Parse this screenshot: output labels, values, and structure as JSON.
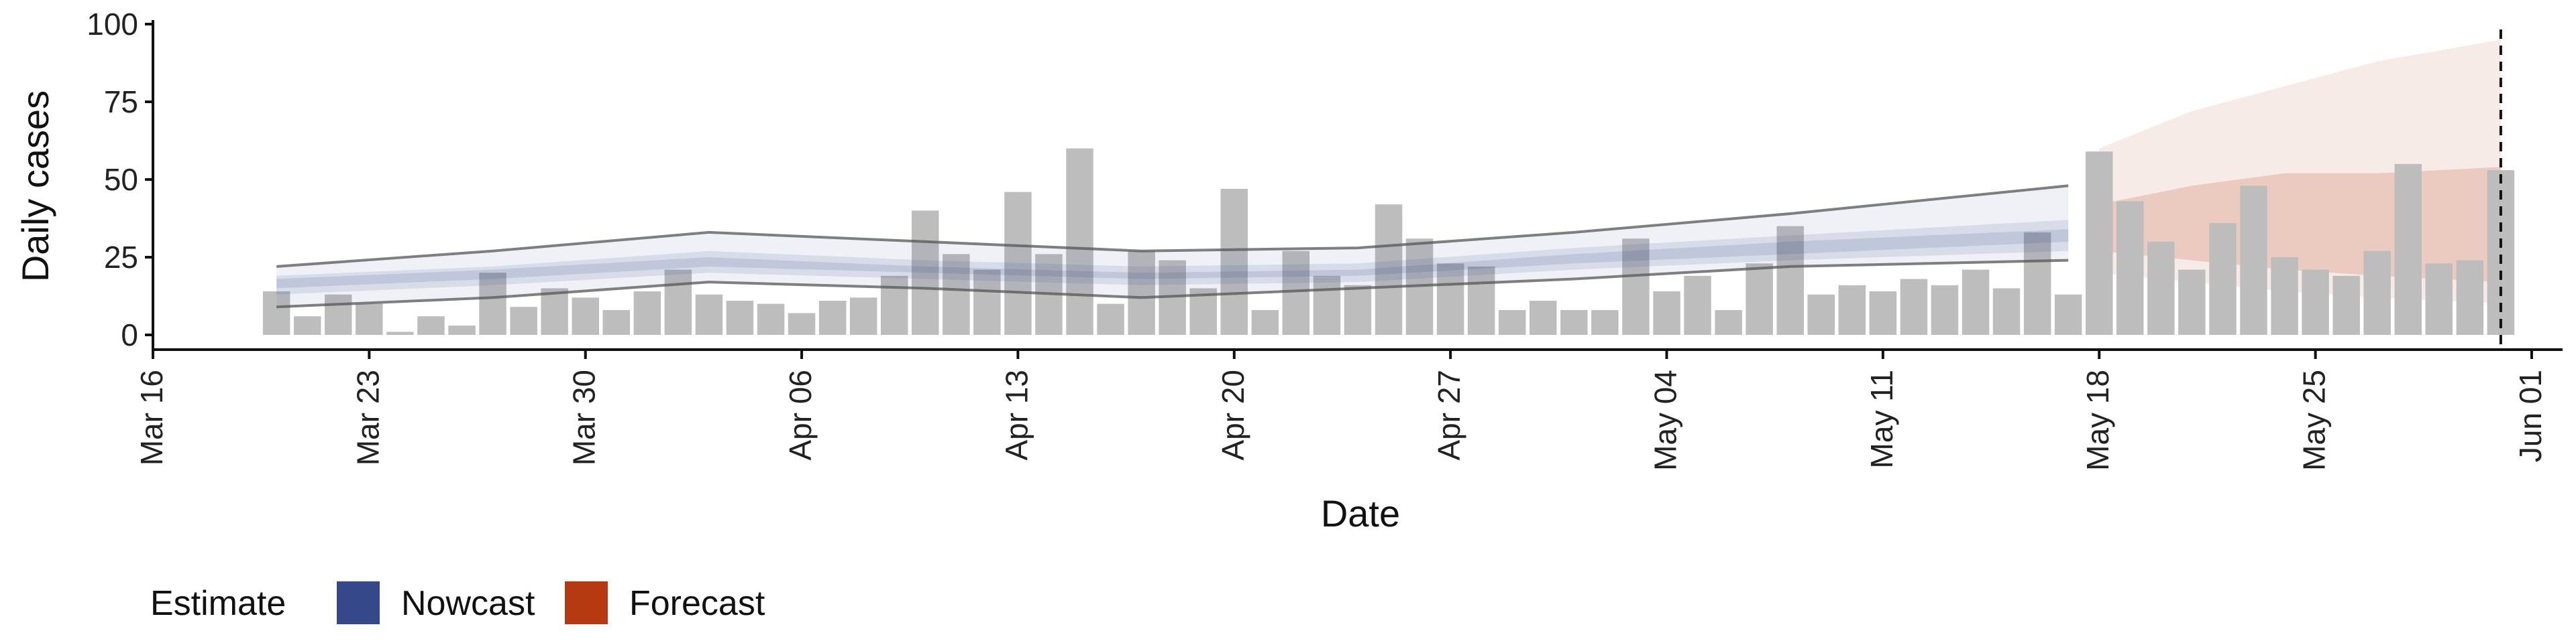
{
  "chart_data": {
    "type": "bar",
    "xlabel": "Date",
    "ylabel": "Daily cases",
    "ylim": [
      0,
      100
    ],
    "y_ticks": [
      0,
      25,
      50,
      75,
      100
    ],
    "xlim": [
      "2020-03-16",
      "2020-06-02"
    ],
    "x_ticks": [
      {
        "date": "2020-03-16",
        "label": "Mar 16"
      },
      {
        "date": "2020-03-23",
        "label": "Mar 23"
      },
      {
        "date": "2020-03-30",
        "label": "Mar 30"
      },
      {
        "date": "2020-04-06",
        "label": "Apr 06"
      },
      {
        "date": "2020-04-13",
        "label": "Apr 13"
      },
      {
        "date": "2020-04-20",
        "label": "Apr 20"
      },
      {
        "date": "2020-04-27",
        "label": "Apr 27"
      },
      {
        "date": "2020-05-04",
        "label": "May 04"
      },
      {
        "date": "2020-05-11",
        "label": "May 11"
      },
      {
        "date": "2020-05-18",
        "label": "May 18"
      },
      {
        "date": "2020-05-25",
        "label": "May 25"
      },
      {
        "date": "2020-06-01",
        "label": "Jun 01"
      }
    ],
    "grid": false,
    "legend": {
      "position": "bottom-left",
      "title": "Estimate",
      "entries": [
        {
          "name": "Nowcast",
          "color": "#34488a"
        },
        {
          "name": "Forecast",
          "color": "#b53a12"
        }
      ]
    },
    "bar_color": "#bdbdbd",
    "dashed_vline_date": "2020-05-31",
    "observed_cases": {
      "start_date": "2020-03-20",
      "values": [
        14,
        6,
        13,
        10,
        1,
        6,
        3,
        20,
        9,
        15,
        12,
        8,
        14,
        21,
        13,
        11,
        10,
        7,
        11,
        12,
        19,
        40,
        26,
        21,
        46,
        26,
        60,
        10,
        27,
        24,
        15,
        47,
        8,
        27,
        19,
        16,
        42,
        31,
        23,
        22,
        8,
        11,
        8,
        8,
        31,
        14,
        19,
        8,
        23,
        35,
        13,
        16,
        14,
        18,
        16,
        21,
        15,
        33,
        13,
        59,
        43,
        30,
        21,
        36,
        48,
        25,
        21,
        19,
        27,
        55,
        23,
        24,
        53
      ]
    },
    "nowcast_band_outer": {
      "dates": [
        "2020-03-20",
        "2020-03-27",
        "2020-04-03",
        "2020-04-10",
        "2020-04-17",
        "2020-04-24",
        "2020-05-01",
        "2020-05-08",
        "2020-05-17"
      ],
      "lower": [
        9,
        12,
        17,
        15,
        12,
        15,
        18,
        22,
        24
      ],
      "upper": [
        22,
        27,
        33,
        30,
        27,
        28,
        33,
        39,
        48
      ]
    },
    "nowcast_band_mid": {
      "dates": [
        "2020-03-20",
        "2020-03-27",
        "2020-04-03",
        "2020-04-10",
        "2020-04-17",
        "2020-04-24",
        "2020-05-01",
        "2020-05-08",
        "2020-05-17"
      ],
      "lower": [
        13,
        16,
        20,
        18,
        16,
        17,
        21,
        24,
        27
      ],
      "upper": [
        19,
        22,
        27,
        24,
        22,
        23,
        28,
        32,
        37
      ]
    },
    "nowcast_band_inner": {
      "dates": [
        "2020-03-20",
        "2020-03-27",
        "2020-04-03",
        "2020-04-10",
        "2020-04-17",
        "2020-04-24",
        "2020-05-01",
        "2020-05-08",
        "2020-05-17"
      ],
      "lower": [
        15,
        18,
        22,
        20,
        18,
        19,
        23,
        26,
        30
      ],
      "upper": [
        18,
        21,
        25,
        22,
        20,
        21,
        26,
        30,
        34
      ]
    },
    "forecast_band_outer": {
      "dates": [
        "2020-05-18",
        "2020-05-21",
        "2020-05-24",
        "2020-05-27",
        "2020-05-31"
      ],
      "lower": [
        20,
        17,
        14,
        12,
        10
      ],
      "upper": [
        60,
        72,
        80,
        88,
        95
      ]
    },
    "forecast_band_mid": {
      "dates": [
        "2020-05-18",
        "2020-05-21",
        "2020-05-24",
        "2020-05-27",
        "2020-05-31"
      ],
      "lower": [
        27,
        24,
        21,
        19,
        17
      ],
      "upper": [
        42,
        48,
        52,
        52,
        54
      ]
    }
  }
}
